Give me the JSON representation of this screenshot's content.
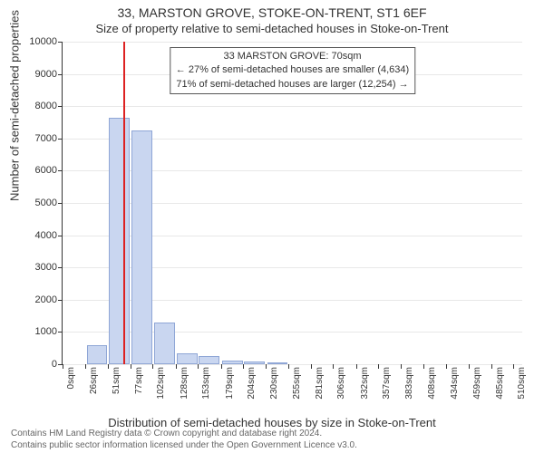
{
  "title_line1": "33, MARSTON GROVE, STOKE-ON-TRENT, ST1 6EF",
  "title_line2": "Size of property relative to semi-detached houses in Stoke-on-Trent",
  "xlabel": "Distribution of semi-detached houses by size in Stoke-on-Trent",
  "ylabel": "Number of semi-detached properties",
  "attribution_line1": "Contains HM Land Registry data © Crown copyright and database right 2024.",
  "attribution_line2": "Contains public sector information licensed under the Open Government Licence v3.0.",
  "chart": {
    "type": "histogram",
    "background_color": "#ffffff",
    "grid_color": "#e8e8e8",
    "axis_color": "#333333",
    "bar_fill": "#c9d6f0",
    "bar_border": "#8fa6d6",
    "bar_width_ratio": 0.9,
    "marker_color": "#dd2222",
    "xlim": [
      0,
      520
    ],
    "ylim": [
      0,
      10000
    ],
    "ytick_step": 1000,
    "xticks": [
      0,
      26,
      51,
      77,
      102,
      128,
      153,
      179,
      204,
      230,
      255,
      281,
      306,
      332,
      357,
      383,
      408,
      434,
      459,
      485,
      510
    ],
    "xtick_suffix": "sqm",
    "bin_width": 26,
    "bins": [
      {
        "x": 0,
        "count": 0
      },
      {
        "x": 26,
        "count": 600
      },
      {
        "x": 51,
        "count": 7650
      },
      {
        "x": 77,
        "count": 7250
      },
      {
        "x": 102,
        "count": 1300
      },
      {
        "x": 128,
        "count": 350
      },
      {
        "x": 153,
        "count": 250
      },
      {
        "x": 179,
        "count": 100
      },
      {
        "x": 204,
        "count": 80
      },
      {
        "x": 230,
        "count": 40
      }
    ],
    "marker_x": 70,
    "infobox": {
      "line1": "33 MARSTON GROVE: 70sqm",
      "line2": "← 27% of semi-detached houses are smaller (4,634)",
      "line3": "71% of semi-detached houses are larger (12,254) →"
    },
    "title_fontsize": 14,
    "subtitle_fontsize": 13,
    "label_fontsize": 13,
    "tick_fontsize": 11,
    "xtick_fontsize": 10,
    "info_fontsize": 11
  }
}
